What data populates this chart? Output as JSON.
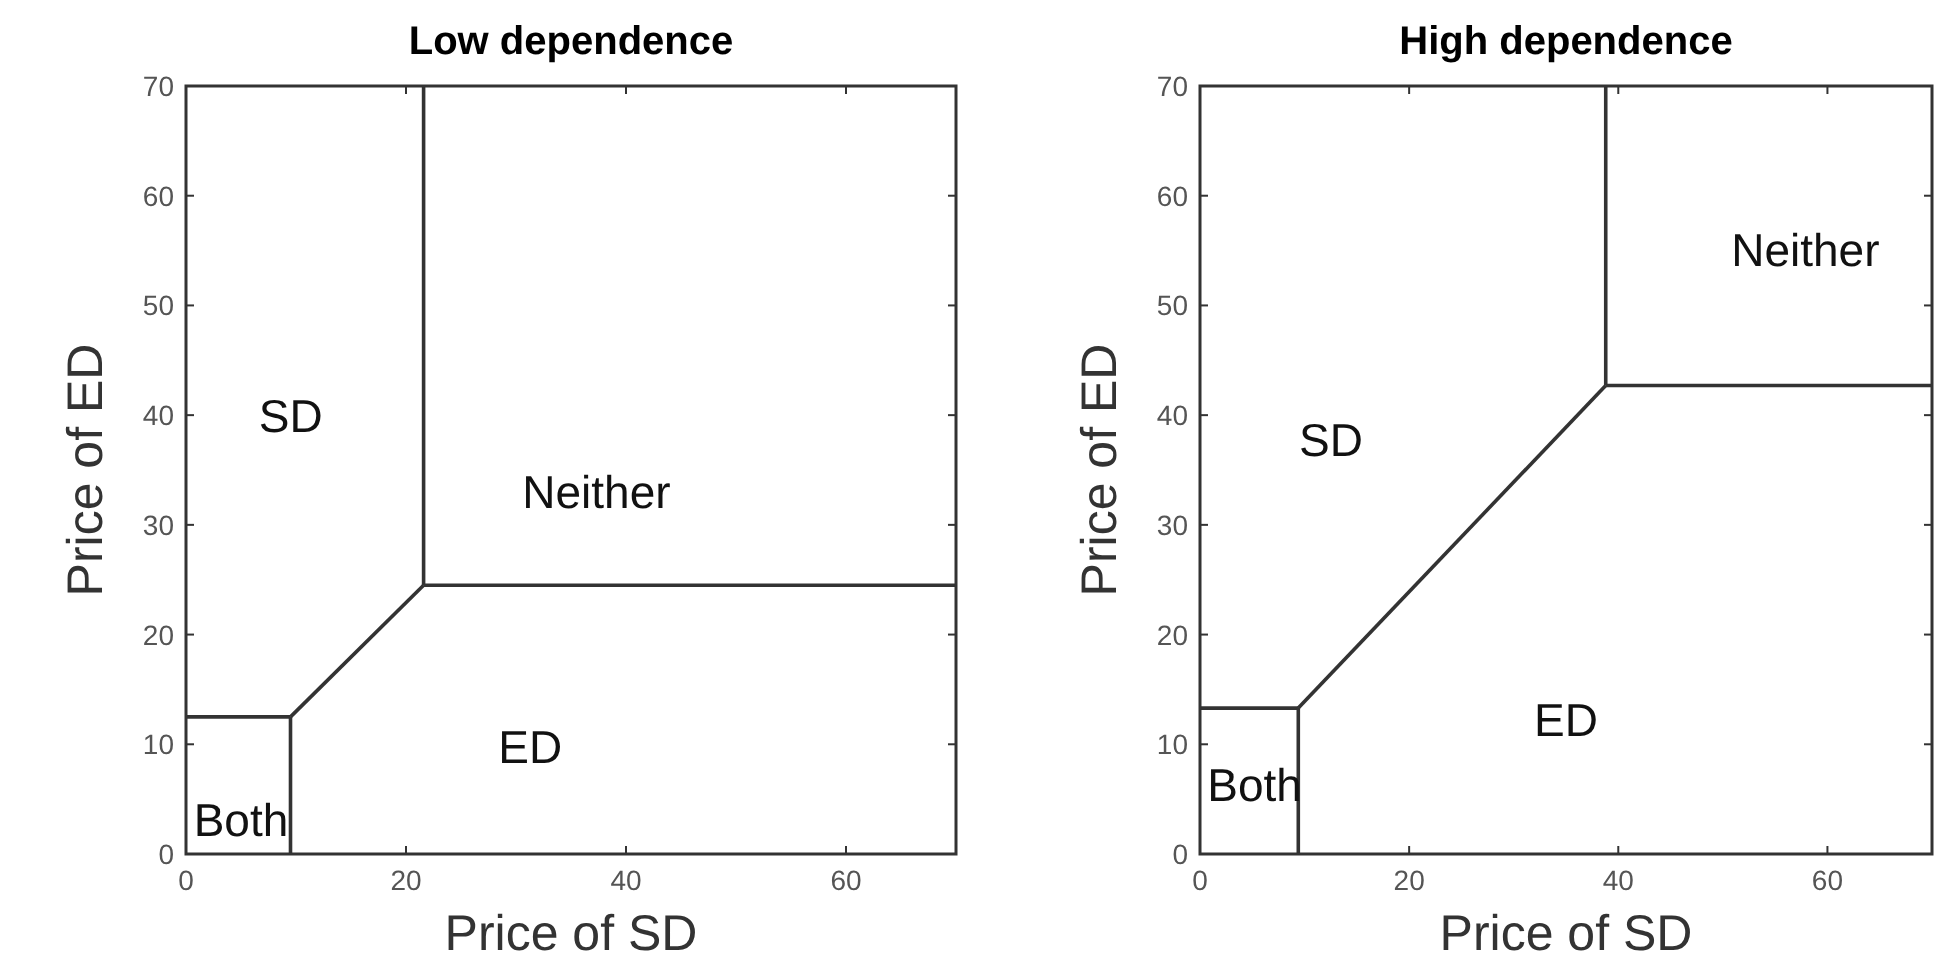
{
  "chart_data": [
    {
      "type": "line",
      "title": "Low dependence",
      "xlabel": "Price of SD",
      "ylabel": "Price of ED",
      "xlim": [
        0,
        70
      ],
      "ylim": [
        0,
        70
      ],
      "xticks": [
        0,
        20,
        40,
        60
      ],
      "yticks": [
        0,
        10,
        20,
        30,
        40,
        50,
        60,
        70
      ],
      "grid": false,
      "marker": "none",
      "line_style": "solid",
      "series": [
        {
          "color": "#333333",
          "x": [
            0,
            9.5
          ],
          "values": [
            12.5,
            12.5
          ]
        },
        {
          "color": "#333333",
          "x": [
            9.5,
            9.5
          ],
          "values": [
            0,
            12.5
          ]
        },
        {
          "color": "#333333",
          "x": [
            9.5,
            21.6
          ],
          "values": [
            12.5,
            24.5
          ]
        },
        {
          "color": "#333333",
          "x": [
            21.6,
            21.6
          ],
          "values": [
            24.5,
            70
          ]
        },
        {
          "color": "#333333",
          "x": [
            21.6,
            70
          ],
          "values": [
            24.5,
            24.5
          ]
        }
      ],
      "annotations": [
        "SD",
        "Neither",
        "ED",
        "Both"
      ]
    },
    {
      "type": "line",
      "title": "High dependence",
      "xlabel": "Price of SD",
      "ylabel": "Price of ED",
      "xlim": [
        0,
        70
      ],
      "ylim": [
        0,
        70
      ],
      "xticks": [
        0,
        20,
        40,
        60
      ],
      "yticks": [
        0,
        10,
        20,
        30,
        40,
        50,
        60,
        70
      ],
      "grid": false,
      "marker": "none",
      "line_style": "solid",
      "series": [
        {
          "color": "#333333",
          "x": [
            0,
            9.4
          ],
          "values": [
            13.3,
            13.3
          ]
        },
        {
          "color": "#333333",
          "x": [
            9.4,
            9.4
          ],
          "values": [
            0,
            13.3
          ]
        },
        {
          "color": "#333333",
          "x": [
            9.4,
            38.8
          ],
          "values": [
            13.3,
            42.7
          ]
        },
        {
          "color": "#333333",
          "x": [
            38.8,
            38.8
          ],
          "values": [
            42.7,
            70
          ]
        },
        {
          "color": "#333333",
          "x": [
            38.8,
            70
          ],
          "values": [
            42.7,
            42.7
          ]
        }
      ],
      "annotations": [
        "SD",
        "Neither",
        "ED",
        "Both"
      ]
    }
  ]
}
